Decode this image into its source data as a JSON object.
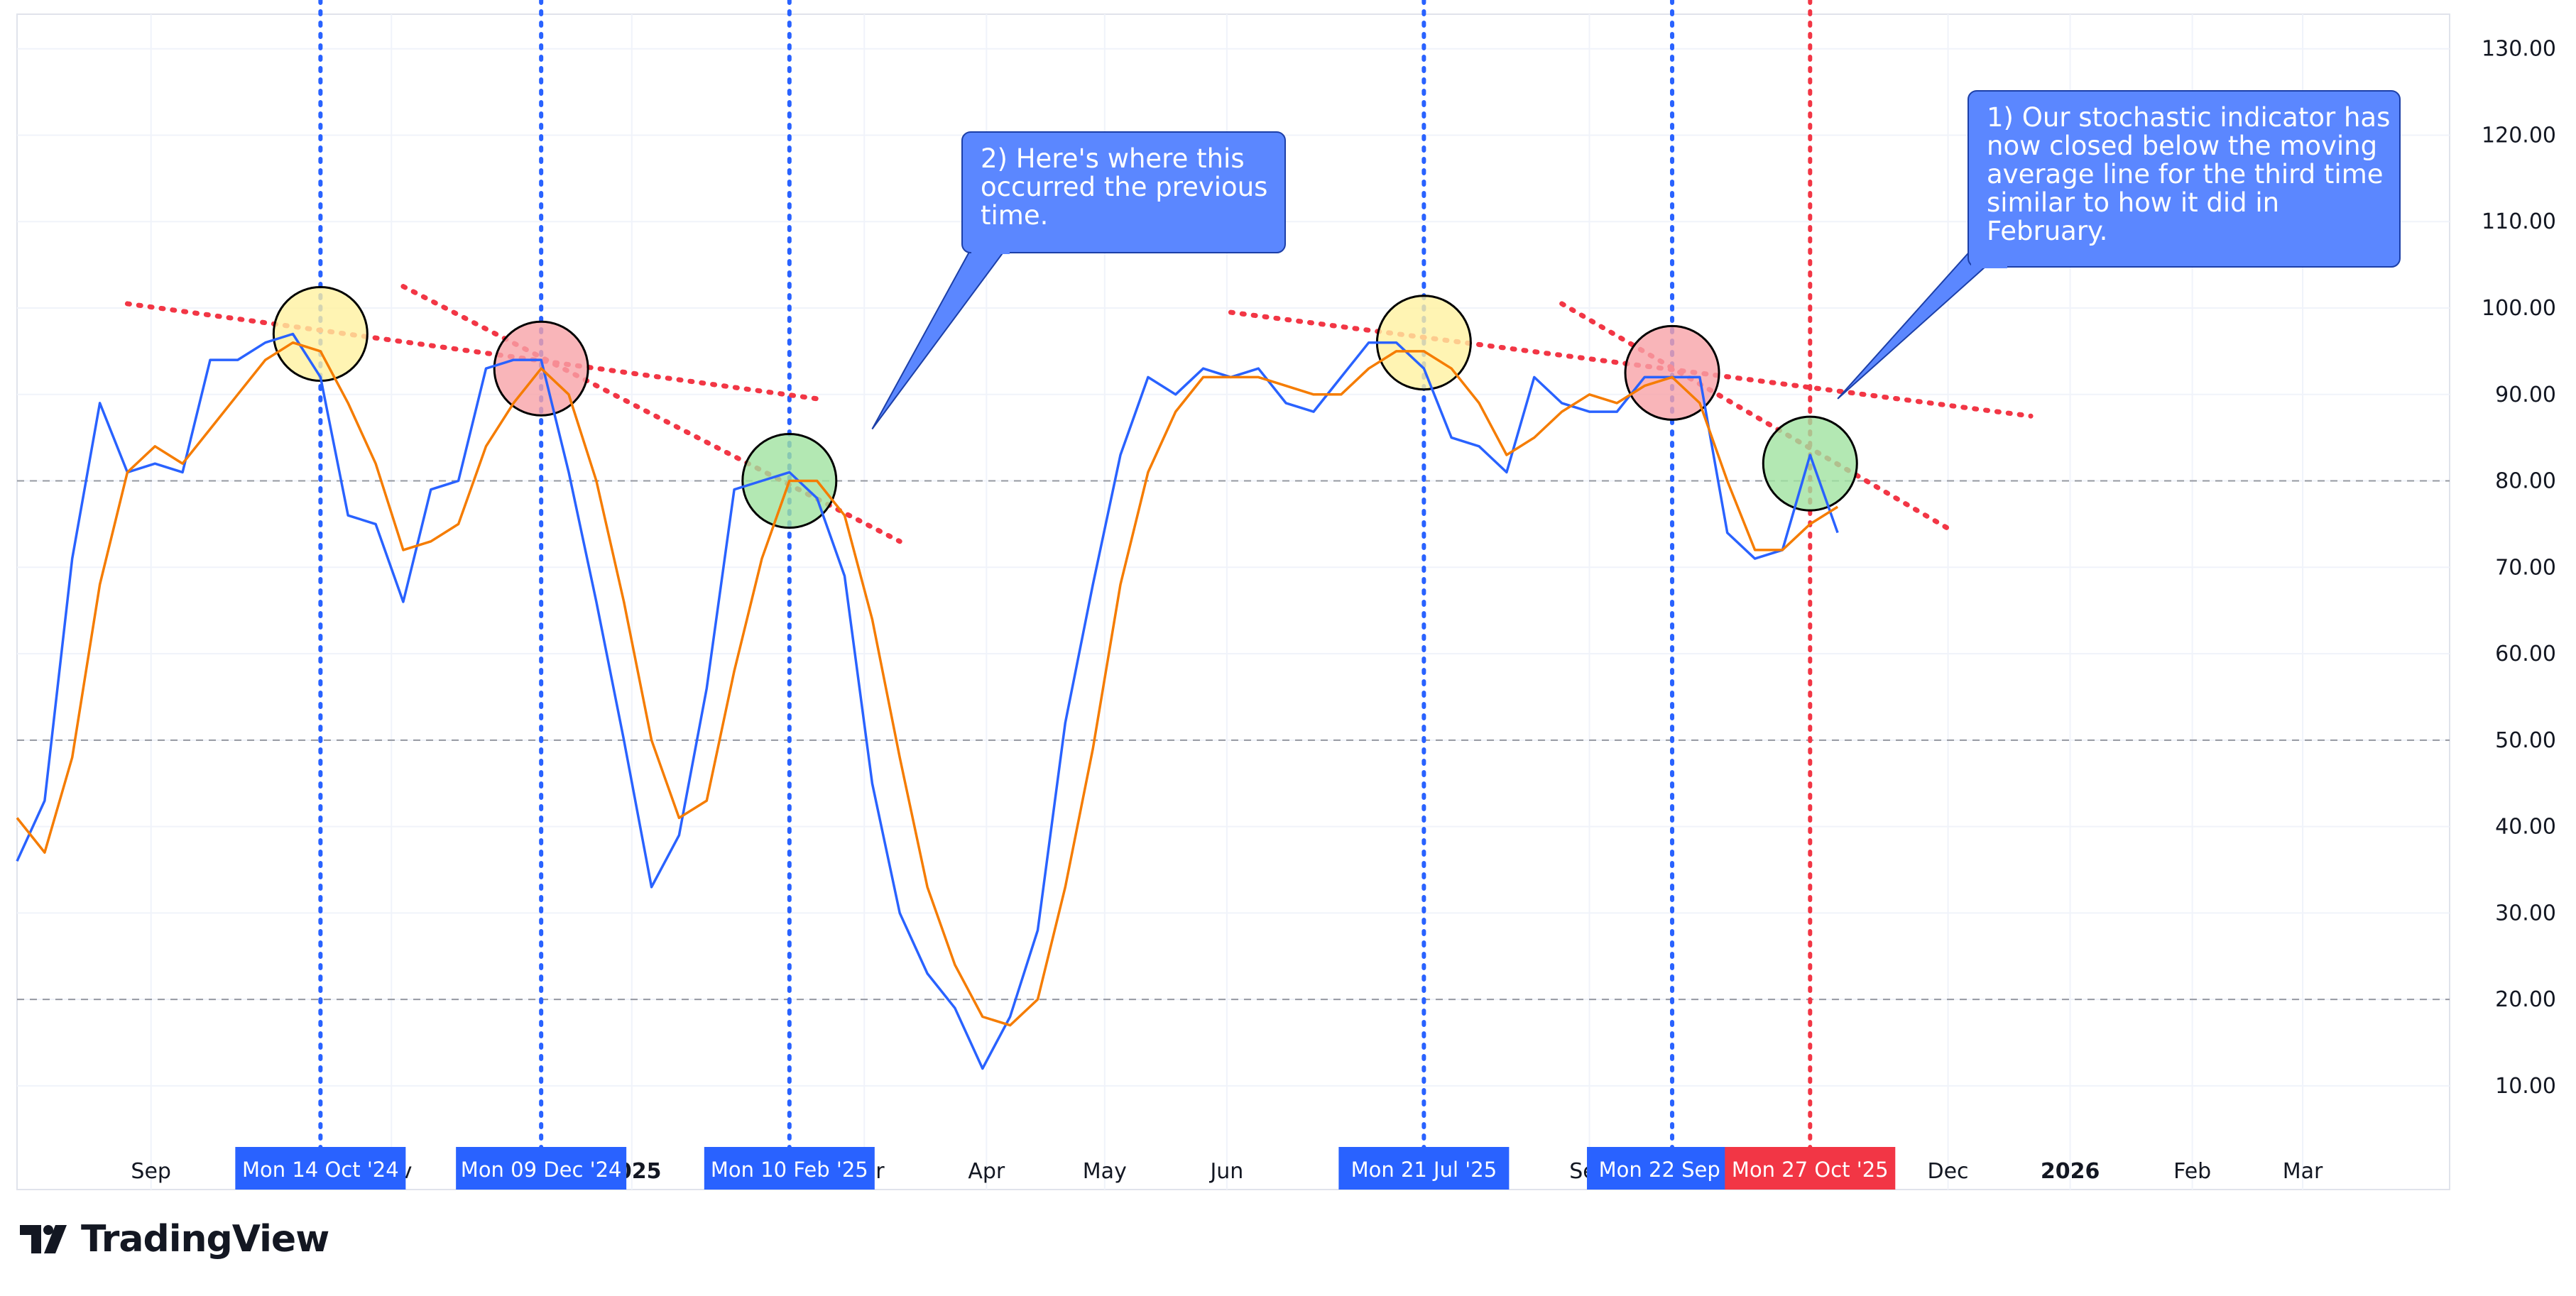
{
  "chart_data": {
    "type": "line",
    "y_axis": {
      "ticks": [
        "130.00",
        "120.00",
        "110.00",
        "100.00",
        "90.00",
        "80.00",
        "70.00",
        "60.00",
        "50.00",
        "40.00",
        "30.00",
        "20.00",
        "10.00"
      ],
      "range": [
        -2,
        134
      ],
      "position": "right",
      "reference_lines": [
        80,
        50,
        20
      ]
    },
    "x_axis": {
      "range": [
        "2024-07-29",
        "2026-03-30"
      ],
      "ticks": [
        {
          "label": "Sep",
          "date": "2024-09-01"
        },
        {
          "label": "Nov",
          "date": "2024-11-01"
        },
        {
          "label": "2025",
          "date": "2025-01-01",
          "bold": true
        },
        {
          "label": "Mar",
          "date": "2025-03-01"
        },
        {
          "label": "Apr",
          "date": "2025-04-01"
        },
        {
          "label": "May",
          "date": "2025-05-01"
        },
        {
          "label": "Jun",
          "date": "2025-06-01"
        },
        {
          "label": "Sep",
          "date": "2025-09-01"
        },
        {
          "label": "Dec",
          "date": "2025-12-01"
        },
        {
          "label": "2026",
          "date": "2026-01-01",
          "bold": true
        },
        {
          "label": "Feb",
          "date": "2026-02-01"
        },
        {
          "label": "Mar",
          "date": "2026-03-01"
        }
      ]
    },
    "grid": true,
    "series": [
      {
        "color": "#2962ff",
        "points": [
          [
            "2024-07-29",
            36
          ],
          [
            "2024-08-05",
            43
          ],
          [
            "2024-08-12",
            71
          ],
          [
            "2024-08-19",
            89
          ],
          [
            "2024-08-26",
            81
          ],
          [
            "2024-09-02",
            82
          ],
          [
            "2024-09-09",
            81
          ],
          [
            "2024-09-16",
            94
          ],
          [
            "2024-09-23",
            94
          ],
          [
            "2024-09-30",
            96
          ],
          [
            "2024-10-07",
            97
          ],
          [
            "2024-10-14",
            92
          ],
          [
            "2024-10-21",
            76
          ],
          [
            "2024-10-28",
            75
          ],
          [
            "2024-11-04",
            66
          ],
          [
            "2024-11-11",
            79
          ],
          [
            "2024-11-18",
            80
          ],
          [
            "2024-11-25",
            93
          ],
          [
            "2024-12-02",
            94
          ],
          [
            "2024-12-09",
            94
          ],
          [
            "2024-12-16",
            81
          ],
          [
            "2024-12-23",
            66
          ],
          [
            "2024-12-30",
            50
          ],
          [
            "2025-01-06",
            33
          ],
          [
            "2025-01-13",
            39
          ],
          [
            "2025-01-20",
            56
          ],
          [
            "2025-01-27",
            79
          ],
          [
            "2025-02-03",
            80
          ],
          [
            "2025-02-10",
            81
          ],
          [
            "2025-02-17",
            78
          ],
          [
            "2025-02-24",
            69
          ],
          [
            "2025-03-03",
            45
          ],
          [
            "2025-03-10",
            30
          ],
          [
            "2025-03-17",
            23
          ],
          [
            "2025-03-24",
            19
          ],
          [
            "2025-03-31",
            12
          ],
          [
            "2025-04-07",
            18
          ],
          [
            "2025-04-14",
            28
          ],
          [
            "2025-04-21",
            52
          ],
          [
            "2025-04-28",
            68
          ],
          [
            "2025-05-05",
            83
          ],
          [
            "2025-05-12",
            92
          ],
          [
            "2025-05-19",
            90
          ],
          [
            "2025-05-26",
            93
          ],
          [
            "2025-06-02",
            92
          ],
          [
            "2025-06-09",
            93
          ],
          [
            "2025-06-16",
            89
          ],
          [
            "2025-06-23",
            88
          ],
          [
            "2025-06-30",
            92
          ],
          [
            "2025-07-07",
            96
          ],
          [
            "2025-07-14",
            96
          ],
          [
            "2025-07-21",
            93
          ],
          [
            "2025-07-28",
            85
          ],
          [
            "2025-08-04",
            84
          ],
          [
            "2025-08-11",
            81
          ],
          [
            "2025-08-18",
            92
          ],
          [
            "2025-08-25",
            89
          ],
          [
            "2025-09-01",
            88
          ],
          [
            "2025-09-08",
            88
          ],
          [
            "2025-09-15",
            92
          ],
          [
            "2025-09-22",
            92
          ],
          [
            "2025-09-29",
            92
          ],
          [
            "2025-10-06",
            74
          ],
          [
            "2025-10-13",
            71
          ],
          [
            "2025-10-20",
            72
          ],
          [
            "2025-10-27",
            83
          ],
          [
            "2025-11-03",
            74
          ]
        ]
      },
      {
        "color": "#f57c00",
        "points": [
          [
            "2024-07-29",
            41
          ],
          [
            "2024-08-05",
            37
          ],
          [
            "2024-08-12",
            48
          ],
          [
            "2024-08-19",
            68
          ],
          [
            "2024-08-26",
            81
          ],
          [
            "2024-09-02",
            84
          ],
          [
            "2024-09-09",
            82
          ],
          [
            "2024-09-16",
            86
          ],
          [
            "2024-09-23",
            90
          ],
          [
            "2024-09-30",
            94
          ],
          [
            "2024-10-07",
            96
          ],
          [
            "2024-10-14",
            95
          ],
          [
            "2024-10-21",
            89
          ],
          [
            "2024-10-28",
            82
          ],
          [
            "2024-11-04",
            72
          ],
          [
            "2024-11-11",
            73
          ],
          [
            "2024-11-18",
            75
          ],
          [
            "2024-11-25",
            84
          ],
          [
            "2024-12-02",
            89
          ],
          [
            "2024-12-09",
            93
          ],
          [
            "2024-12-16",
            90
          ],
          [
            "2024-12-23",
            80
          ],
          [
            "2024-12-30",
            66
          ],
          [
            "2025-01-06",
            50
          ],
          [
            "2025-01-13",
            41
          ],
          [
            "2025-01-20",
            43
          ],
          [
            "2025-01-27",
            58
          ],
          [
            "2025-02-03",
            71
          ],
          [
            "2025-02-10",
            80
          ],
          [
            "2025-02-17",
            80
          ],
          [
            "2025-02-24",
            76
          ],
          [
            "2025-03-03",
            64
          ],
          [
            "2025-03-10",
            48
          ],
          [
            "2025-03-17",
            33
          ],
          [
            "2025-03-24",
            24
          ],
          [
            "2025-03-31",
            18
          ],
          [
            "2025-04-07",
            17
          ],
          [
            "2025-04-14",
            20
          ],
          [
            "2025-04-21",
            33
          ],
          [
            "2025-04-28",
            49
          ],
          [
            "2025-05-05",
            68
          ],
          [
            "2025-05-12",
            81
          ],
          [
            "2025-05-19",
            88
          ],
          [
            "2025-05-26",
            92
          ],
          [
            "2025-06-02",
            92
          ],
          [
            "2025-06-09",
            92
          ],
          [
            "2025-06-16",
            91
          ],
          [
            "2025-06-23",
            90
          ],
          [
            "2025-06-30",
            90
          ],
          [
            "2025-07-07",
            93
          ],
          [
            "2025-07-14",
            95
          ],
          [
            "2025-07-21",
            95
          ],
          [
            "2025-07-28",
            93
          ],
          [
            "2025-08-04",
            89
          ],
          [
            "2025-08-11",
            83
          ],
          [
            "2025-08-18",
            85
          ],
          [
            "2025-08-25",
            88
          ],
          [
            "2025-09-01",
            90
          ],
          [
            "2025-09-08",
            89
          ],
          [
            "2025-09-15",
            91
          ],
          [
            "2025-09-22",
            92
          ],
          [
            "2025-09-29",
            89
          ],
          [
            "2025-10-06",
            80
          ],
          [
            "2025-10-13",
            72
          ],
          [
            "2025-10-20",
            72
          ],
          [
            "2025-10-27",
            75
          ],
          [
            "2025-11-03",
            77
          ]
        ]
      }
    ],
    "vertical_markers": [
      {
        "date": "2024-10-14",
        "label": "Mon 14 Oct '24",
        "color": "#2962ff"
      },
      {
        "date": "2024-12-09",
        "label": "Mon 09 Dec '24",
        "color": "#2962ff"
      },
      {
        "date": "2025-02-10",
        "label": "Mon 10 Feb '25",
        "color": "#2962ff"
      },
      {
        "date": "2025-07-21",
        "label": "Mon 21 Jul '25",
        "color": "#2962ff"
      },
      {
        "date": "2025-09-22",
        "label": "Mon 22 Sep '2",
        "color": "#2962ff"
      },
      {
        "date": "2025-10-27",
        "label": "Mon 27 Oct '25",
        "color": "#f23645"
      }
    ],
    "circles": [
      {
        "date": "2024-10-14",
        "y": 97,
        "color": "yellow"
      },
      {
        "date": "2024-12-09",
        "y": 93,
        "color": "red"
      },
      {
        "date": "2025-02-10",
        "y": 80,
        "color": "green"
      },
      {
        "date": "2025-07-21",
        "y": 96,
        "color": "yellow"
      },
      {
        "date": "2025-09-22",
        "y": 92.5,
        "color": "red"
      },
      {
        "date": "2025-10-27",
        "y": 82,
        "color": "green"
      }
    ],
    "trend_lines": [
      {
        "from": [
          "2024-08-26",
          100.5
        ],
        "to": [
          "2025-02-17",
          89.5
        ]
      },
      {
        "from": [
          "2024-11-04",
          102.5
        ],
        "to": [
          "2025-03-10",
          73
        ]
      },
      {
        "from": [
          "2025-06-02",
          99.5
        ],
        "to": [
          "2025-12-22",
          87.5
        ]
      },
      {
        "from": [
          "2025-08-25",
          100.5
        ],
        "to": [
          "2025-12-01",
          74.5
        ]
      }
    ],
    "annotations": [
      {
        "lines": [
          "2) Here's where this",
          "occurred the previous",
          "time."
        ],
        "anchor": [
          "2025-03-03",
          86
        ]
      },
      {
        "lines": [
          "1) Our stochastic indicator has",
          "now closed below the moving",
          "average line for the third time",
          "similar to how it did in",
          "February."
        ],
        "anchor": [
          "2025-11-03",
          89.5
        ]
      }
    ]
  },
  "branding": {
    "logo_text": "TradingView"
  }
}
